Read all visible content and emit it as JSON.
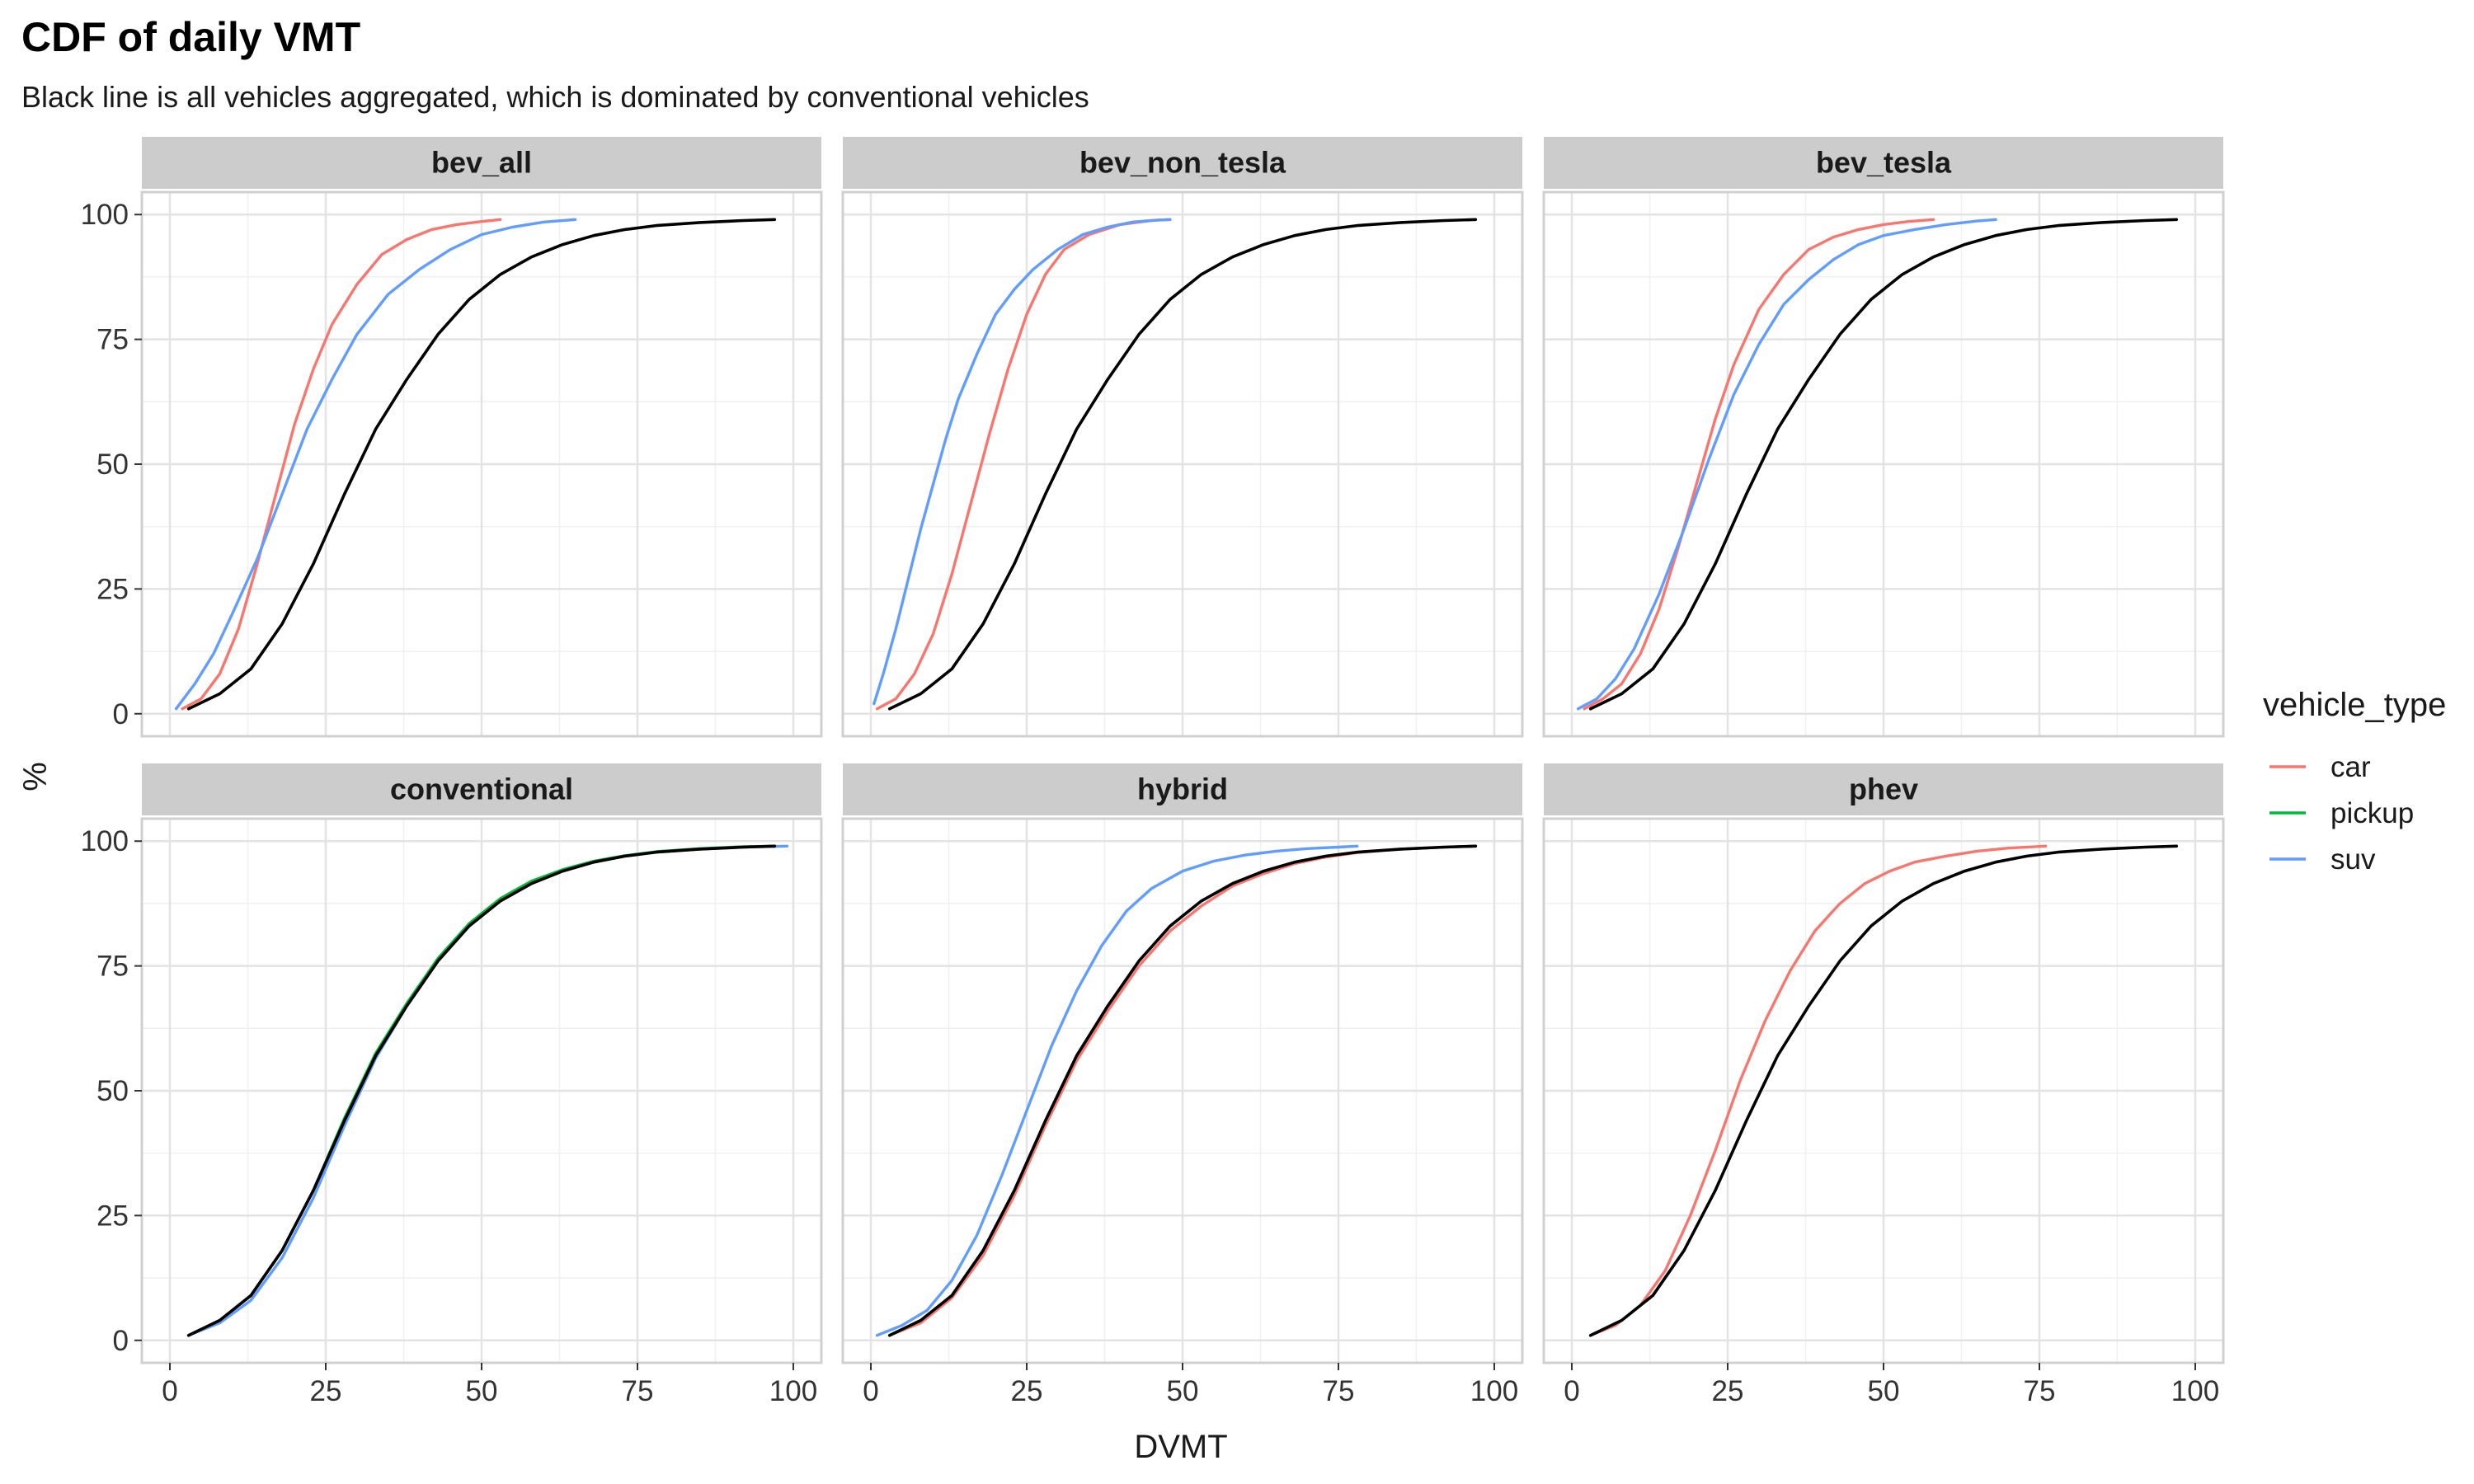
{
  "chart_data": {
    "type": "line",
    "title": "CDF of daily VMT",
    "subtitle": "Black line is all vehicles aggregated, which is dominated by conventional vehicles",
    "xlabel": "DVMT",
    "ylabel": "%",
    "xlim": [
      0,
      100
    ],
    "ylim": [
      0,
      100
    ],
    "x_ticks": [
      0,
      25,
      50,
      75,
      100
    ],
    "y_ticks": [
      0,
      25,
      50,
      75,
      100
    ],
    "grid": true,
    "legend": {
      "title": "vehicle_type",
      "placement": "right",
      "entries": [
        {
          "label": "car",
          "color": "#F8766D"
        },
        {
          "label": "pickup",
          "color": "#00BA38"
        },
        {
          "label": "suv",
          "color": "#619CFF"
        }
      ]
    },
    "aggregate_color": "#000000",
    "panels": [
      {
        "name": "bev_all",
        "series": [
          {
            "type": "car",
            "x": [
              2,
              5,
              8,
              11,
              14,
              17,
              20,
              23,
              26,
              30,
              34,
              38,
              42,
              46,
              50,
              53
            ],
            "y": [
              1,
              3,
              8,
              17,
              30,
              44,
              58,
              69,
              78,
              86,
              92,
              95,
              97,
              98,
              98.6,
              99
            ]
          },
          {
            "type": "suv",
            "x": [
              1,
              4,
              7,
              10,
              14,
              18,
              22,
              26,
              30,
              35,
              40,
              45,
              50,
              55,
              60,
              65
            ],
            "y": [
              1,
              6,
              12,
              20,
              31,
              44,
              57,
              67,
              76,
              84,
              89,
              93,
              96,
              97.5,
              98.5,
              99
            ]
          },
          {
            "type": "all",
            "x": [
              3,
              8,
              13,
              18,
              23,
              28,
              33,
              38,
              43,
              48,
              53,
              58,
              63,
              68,
              73,
              78,
              85,
              92,
              97
            ],
            "y": [
              1,
              4,
              9,
              18,
              30,
              44,
              57,
              67,
              76,
              83,
              88,
              91.5,
              94,
              95.8,
              97,
              97.8,
              98.4,
              98.8,
              99
            ]
          }
        ]
      },
      {
        "name": "bev_non_tesla",
        "series": [
          {
            "type": "car",
            "x": [
              1,
              4,
              7,
              10,
              13,
              16,
              19,
              22,
              25,
              28,
              31,
              35,
              40,
              45,
              48
            ],
            "y": [
              1,
              3,
              8,
              16,
              28,
              42,
              56,
              69,
              80,
              88,
              93,
              96,
              98,
              98.8,
              99
            ]
          },
          {
            "type": "suv",
            "x": [
              0.5,
              2,
              4,
              6,
              8,
              10,
              12,
              14,
              17,
              20,
              23,
              26,
              30,
              34,
              38,
              42,
              46,
              48
            ],
            "y": [
              2,
              8,
              17,
              27,
              37,
              46,
              55,
              63,
              72,
              80,
              85,
              89,
              93,
              96,
              97.5,
              98.5,
              98.9,
              99
            ]
          },
          {
            "type": "all",
            "x": [
              3,
              8,
              13,
              18,
              23,
              28,
              33,
              38,
              43,
              48,
              53,
              58,
              63,
              68,
              73,
              78,
              85,
              92,
              97
            ],
            "y": [
              1,
              4,
              9,
              18,
              30,
              44,
              57,
              67,
              76,
              83,
              88,
              91.5,
              94,
              95.8,
              97,
              97.8,
              98.4,
              98.8,
              99
            ]
          }
        ]
      },
      {
        "name": "bev_tesla",
        "series": [
          {
            "type": "car",
            "x": [
              2,
              5,
              8,
              11,
              14,
              17,
              20,
              23,
              26,
              30,
              34,
              38,
              42,
              46,
              50,
              54,
              58
            ],
            "y": [
              1,
              3,
              6,
              12,
              21,
              33,
              46,
              59,
              70,
              81,
              88,
              93,
              95.5,
              97,
              98,
              98.6,
              99
            ]
          },
          {
            "type": "suv",
            "x": [
              1,
              4,
              7,
              10,
              14,
              18,
              22,
              26,
              30,
              34,
              38,
              42,
              46,
              50,
              55,
              60,
              65,
              68
            ],
            "y": [
              1,
              3,
              7,
              13,
              24,
              37,
              51,
              64,
              74,
              82,
              87,
              91,
              94,
              95.8,
              97,
              98,
              98.7,
              99
            ]
          },
          {
            "type": "all",
            "x": [
              3,
              8,
              13,
              18,
              23,
              28,
              33,
              38,
              43,
              48,
              53,
              58,
              63,
              68,
              73,
              78,
              85,
              92,
              97
            ],
            "y": [
              1,
              4,
              9,
              18,
              30,
              44,
              57,
              67,
              76,
              83,
              88,
              91.5,
              94,
              95.8,
              97,
              97.8,
              98.4,
              98.8,
              99
            ]
          }
        ]
      },
      {
        "name": "conventional",
        "series": [
          {
            "type": "car",
            "x": [
              3,
              8,
              13,
              18,
              23,
              28,
              33,
              38,
              43,
              48,
              53,
              58,
              63,
              68,
              73,
              78,
              85,
              92,
              97
            ],
            "y": [
              1,
              4,
              9,
              18,
              30,
              44,
              57,
              67,
              76,
              83,
              88,
              91.5,
              94,
              95.8,
              97,
              97.8,
              98.4,
              98.8,
              99
            ]
          },
          {
            "type": "pickup",
            "x": [
              3,
              8,
              13,
              18,
              23,
              28,
              33,
              38,
              43,
              48,
              53,
              58,
              63,
              68,
              73,
              78,
              85,
              92,
              97
            ],
            "y": [
              1,
              4,
              9,
              18,
              30,
              44.5,
              57.5,
              67.5,
              76.5,
              83.5,
              88.5,
              92,
              94.3,
              96,
              97.1,
              97.9,
              98.5,
              98.9,
              99
            ]
          },
          {
            "type": "suv",
            "x": [
              3,
              8,
              13,
              18,
              23,
              28,
              33,
              38,
              43,
              48,
              53,
              58,
              63,
              68,
              73,
              78,
              85,
              92,
              99
            ],
            "y": [
              1,
              3.5,
              8,
              16.5,
              28.5,
              43,
              56.5,
              67,
              76,
              83,
              88,
              91.5,
              94,
              95.8,
              97,
              97.8,
              98.4,
              98.8,
              99
            ]
          },
          {
            "type": "all",
            "x": [
              3,
              8,
              13,
              18,
              23,
              28,
              33,
              38,
              43,
              48,
              53,
              58,
              63,
              68,
              73,
              78,
              85,
              92,
              97
            ],
            "y": [
              1,
              4,
              9,
              18,
              30,
              44,
              57,
              67,
              76,
              83,
              88,
              91.5,
              94,
              95.8,
              97,
              97.8,
              98.4,
              98.8,
              99
            ]
          }
        ]
      },
      {
        "name": "hybrid",
        "series": [
          {
            "type": "car",
            "x": [
              3,
              8,
              13,
              18,
              23,
              28,
              33,
              38,
              43,
              48,
              53,
              58,
              63,
              68,
              73,
              78,
              85,
              92,
              97
            ],
            "y": [
              1,
              3.5,
              8.5,
              17,
              29,
              43,
              56,
              66,
              75,
              82,
              87,
              91,
              93.5,
              95.5,
              96.8,
              97.7,
              98.4,
              98.8,
              99
            ]
          },
          {
            "type": "suv",
            "x": [
              1,
              5,
              9,
              13,
              17,
              21,
              25,
              29,
              33,
              37,
              41,
              45,
              50,
              55,
              60,
              65,
              70,
              75,
              78
            ],
            "y": [
              1,
              3,
              6,
              12,
              21,
              33,
              46,
              59,
              70,
              79,
              86,
              90.5,
              94,
              96,
              97.2,
              98,
              98.5,
              98.8,
              99
            ]
          },
          {
            "type": "all",
            "x": [
              3,
              8,
              13,
              18,
              23,
              28,
              33,
              38,
              43,
              48,
              53,
              58,
              63,
              68,
              73,
              78,
              85,
              92,
              97
            ],
            "y": [
              1,
              4,
              9,
              18,
              30,
              44,
              57,
              67,
              76,
              83,
              88,
              91.5,
              94,
              95.8,
              97,
              97.8,
              98.4,
              98.8,
              99
            ]
          }
        ]
      },
      {
        "name": "phev",
        "series": [
          {
            "type": "car",
            "x": [
              3,
              7,
              11,
              15,
              19,
              23,
              27,
              31,
              35,
              39,
              43,
              47,
              51,
              55,
              60,
              65,
              70,
              76
            ],
            "y": [
              1,
              3,
              7,
              14,
              25,
              38,
              52,
              64,
              74,
              82,
              87.5,
              91.5,
              94,
              95.8,
              97,
              98,
              98.6,
              99
            ]
          },
          {
            "type": "all",
            "x": [
              3,
              8,
              13,
              18,
              23,
              28,
              33,
              38,
              43,
              48,
              53,
              58,
              63,
              68,
              73,
              78,
              85,
              92,
              97
            ],
            "y": [
              1,
              4,
              9,
              18,
              30,
              44,
              57,
              67,
              76,
              83,
              88,
              91.5,
              94,
              95.8,
              97,
              97.8,
              98.4,
              98.8,
              99
            ]
          }
        ]
      }
    ]
  }
}
